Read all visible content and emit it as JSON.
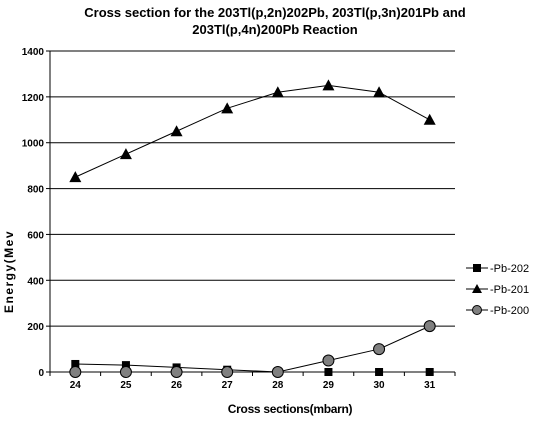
{
  "chart_data": {
    "type": "line",
    "title_line1": "Cross section for the 203Tl(p,2n)202Pb, 203Tl(p,3n)201Pb and",
    "title_line2": "203Tl(p,4n)200Pb Reaction",
    "xlabel": "Cross sections(mbarn)",
    "ylabel": "Energy(Mev",
    "categories": [
      "24",
      "25",
      "26",
      "27",
      "28",
      "29",
      "30",
      "31"
    ],
    "ylim": [
      0,
      1400
    ],
    "yticks": [
      0,
      200,
      400,
      600,
      800,
      1000,
      1200,
      1400
    ],
    "grid": "horizontal",
    "legend_position": "right",
    "series": [
      {
        "name": "Pb-202",
        "marker": "square",
        "values": [
          35,
          30,
          20,
          10,
          0,
          0,
          0,
          0
        ]
      },
      {
        "name": "Pb-201",
        "marker": "triangle",
        "values": [
          850,
          950,
          1050,
          1150,
          1220,
          1250,
          1220,
          1100
        ]
      },
      {
        "name": "Pb-200",
        "marker": "circle",
        "values": [
          0,
          0,
          0,
          0,
          0,
          50,
          100,
          200
        ]
      }
    ],
    "line_color": "#000000"
  }
}
